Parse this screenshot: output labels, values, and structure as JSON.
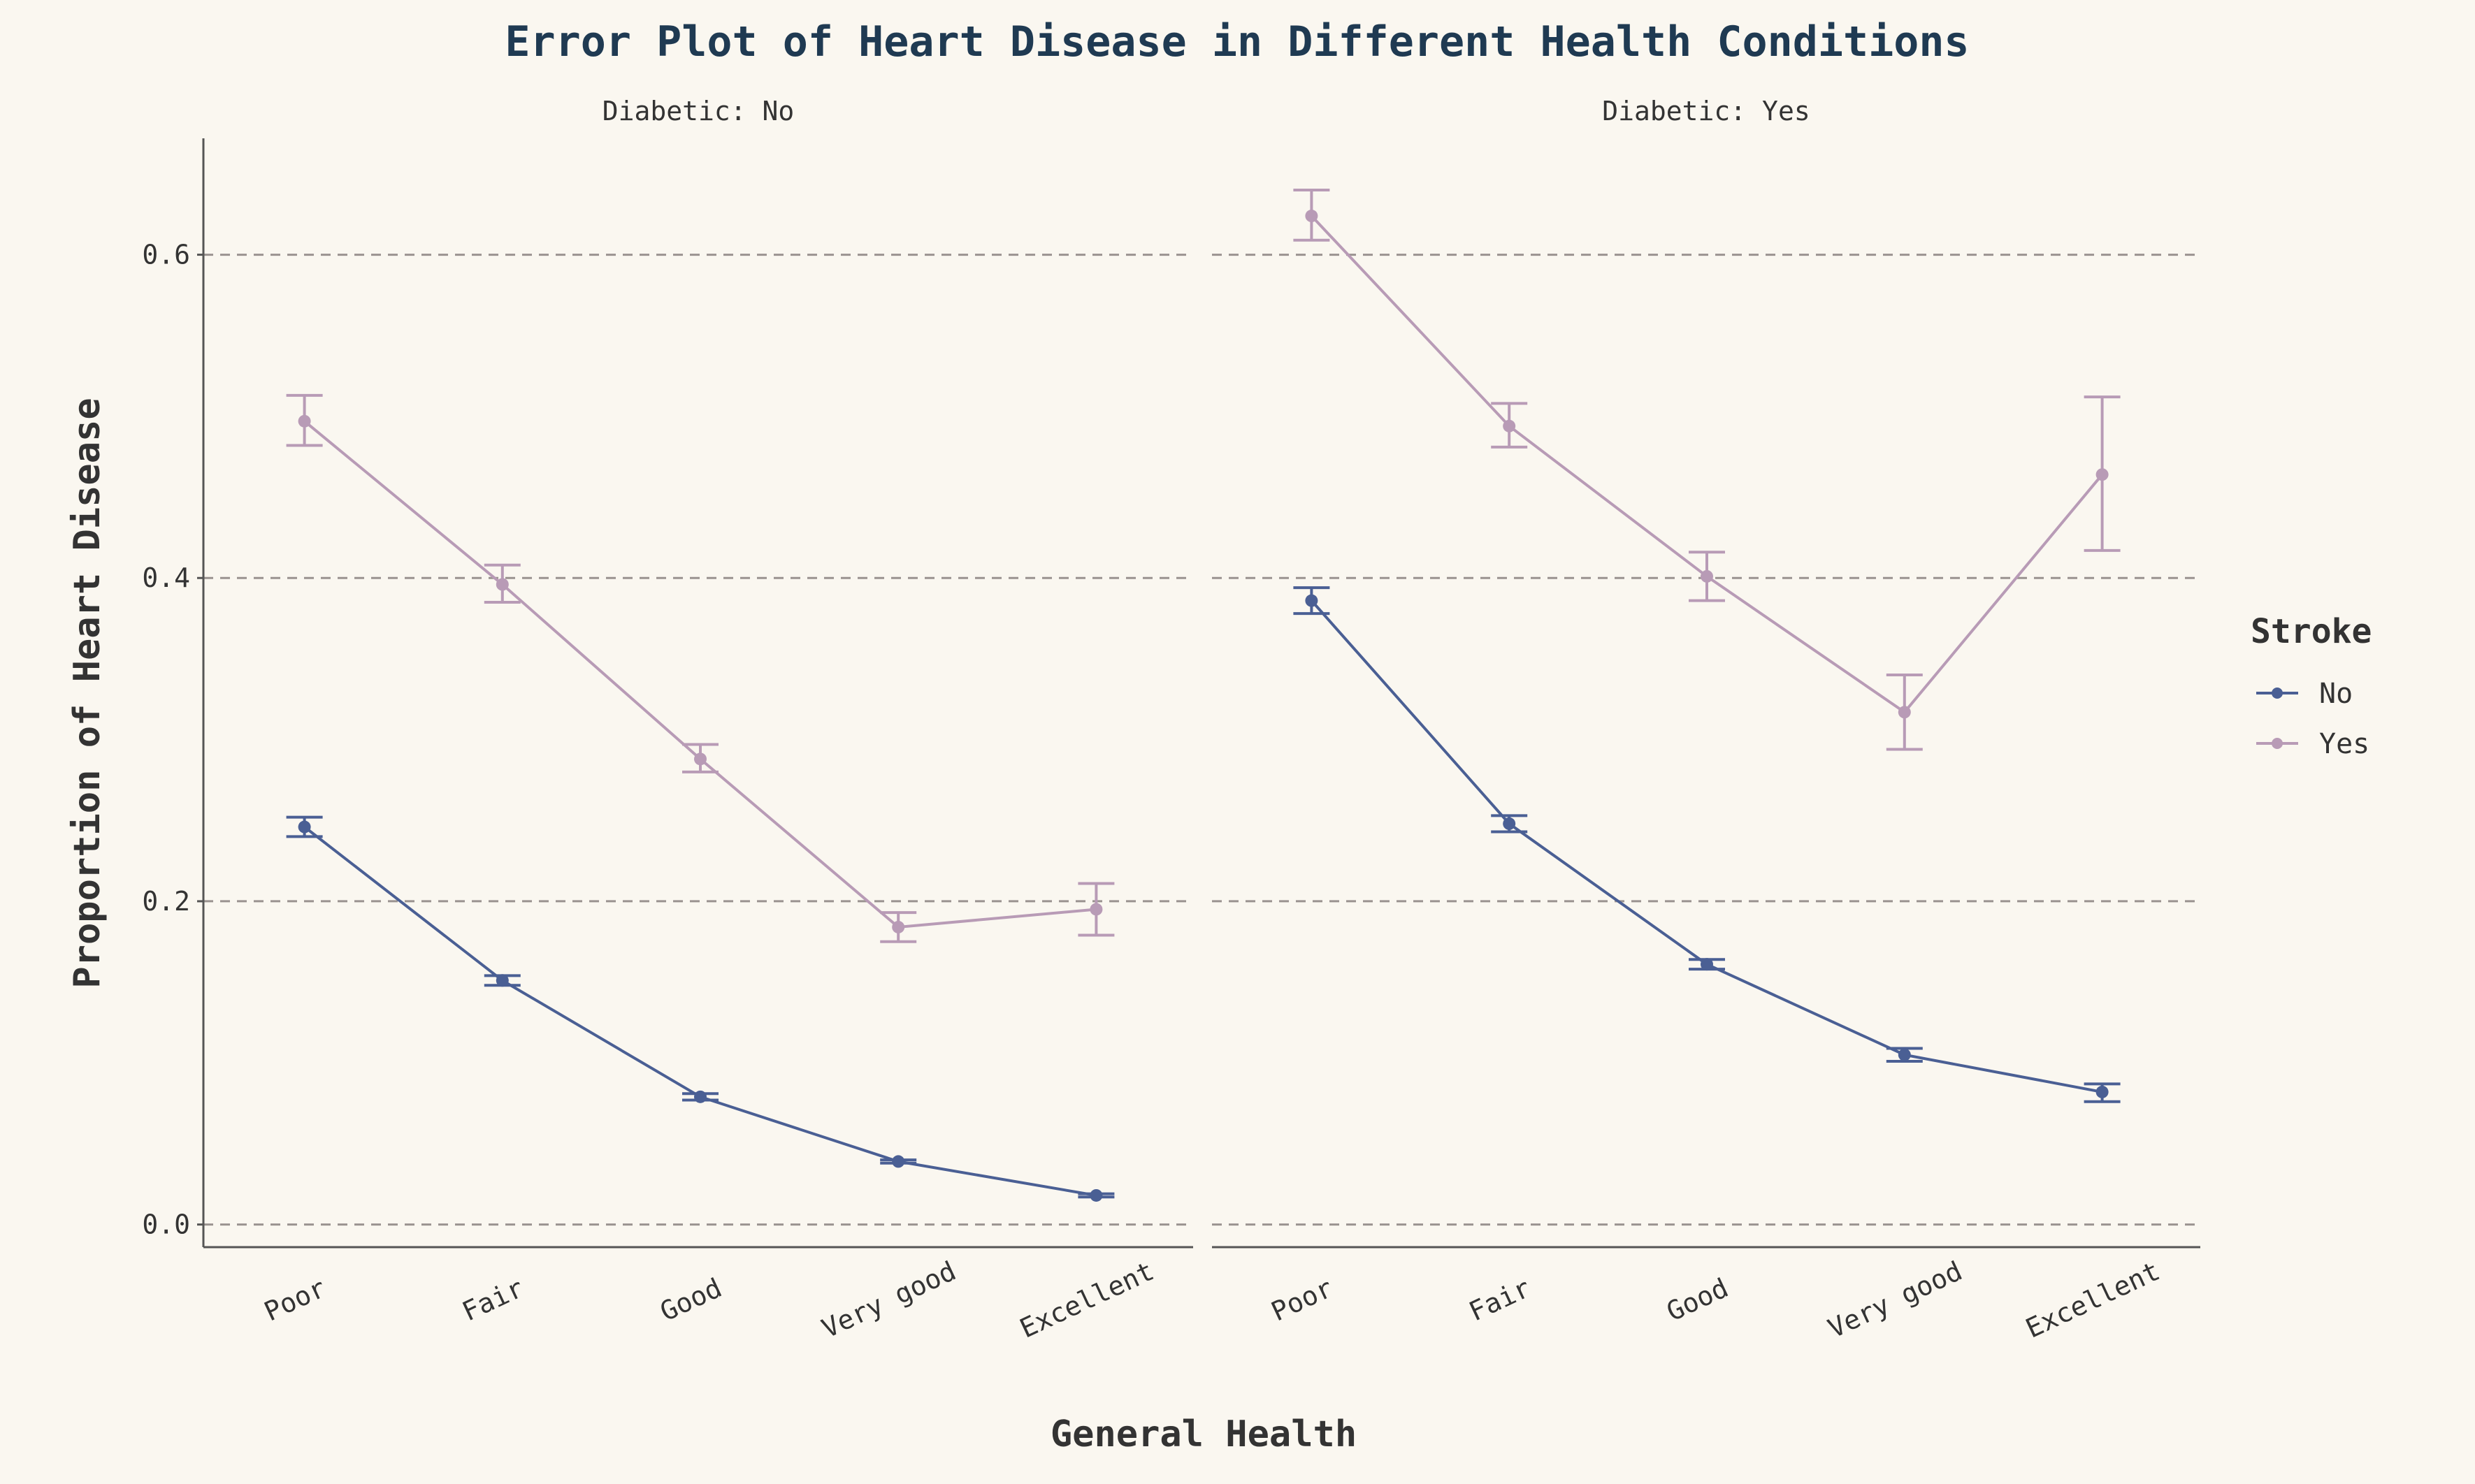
{
  "chart_data": {
    "type": "line",
    "title": "Error Plot of Heart Disease in Different Health Conditions",
    "xlabel": "General Health",
    "ylabel": "Proportion of Heart Disease",
    "ylim": [
      -0.014,
      0.672
    ],
    "yticks": [
      0.0,
      0.2,
      0.4,
      0.6
    ],
    "ytick_labels": [
      "0.0",
      "0.2",
      "0.4",
      "0.6"
    ],
    "grid": "horizontal dashed",
    "categories": [
      "Poor",
      "Fair",
      "Good",
      "Very good",
      "Excellent"
    ],
    "legend": {
      "title": "Stroke",
      "position": "right"
    },
    "colors": {
      "No": "#4a5f94",
      "Yes": "#b89bb6",
      "background": "#faf7f0",
      "grid": "#9a9390",
      "title": "#1f3a52"
    },
    "panels": [
      {
        "label": "Diabetic: No",
        "series": [
          {
            "name": "No",
            "values": [
              0.246,
              0.151,
              0.079,
              0.039,
              0.018
            ],
            "lower": [
              0.24,
              0.148,
              0.077,
              0.038,
              0.017
            ],
            "upper": [
              0.252,
              0.154,
              0.081,
              0.04,
              0.019
            ]
          },
          {
            "name": "Yes",
            "values": [
              0.497,
              0.396,
              0.288,
              0.184,
              0.195
            ],
            "lower": [
              0.482,
              0.385,
              0.28,
              0.175,
              0.179
            ],
            "upper": [
              0.513,
              0.408,
              0.297,
              0.193,
              0.211
            ]
          }
        ]
      },
      {
        "label": "Diabetic: Yes",
        "series": [
          {
            "name": "No",
            "values": [
              0.386,
              0.248,
              0.161,
              0.105,
              0.082
            ],
            "lower": [
              0.378,
              0.243,
              0.158,
              0.101,
              0.076
            ],
            "upper": [
              0.394,
              0.253,
              0.164,
              0.109,
              0.087
            ]
          },
          {
            "name": "Yes",
            "values": [
              0.624,
              0.494,
              0.401,
              0.317,
              0.464
            ],
            "lower": [
              0.609,
              0.481,
              0.386,
              0.294,
              0.417
            ],
            "upper": [
              0.64,
              0.508,
              0.416,
              0.34,
              0.512
            ]
          }
        ]
      }
    ]
  }
}
